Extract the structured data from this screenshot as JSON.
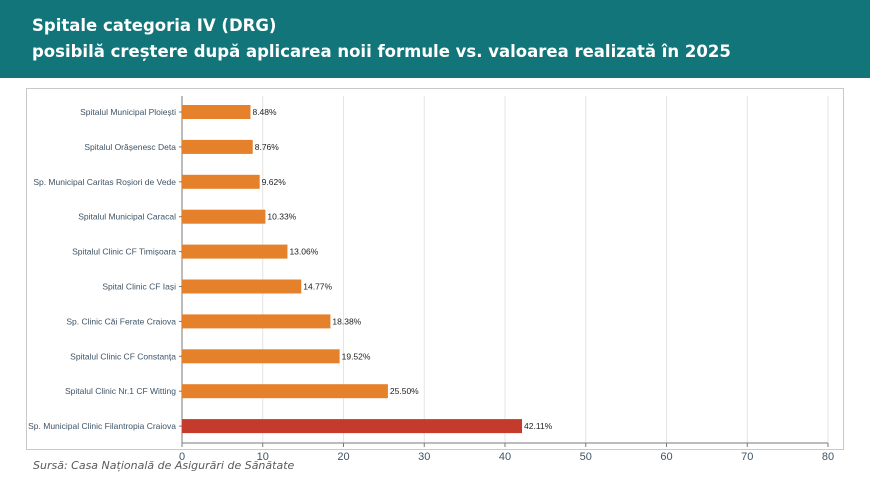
{
  "header": {
    "title_line1": "Spitale categoria IV (DRG)",
    "title_line2": "posibilă creștere după aplicarea noii formule vs. valoarea realizată în 2025"
  },
  "source": "Sursă: Casa Națională de Asigurări de Sănătate",
  "colors": {
    "header_bg": "#12757a",
    "bar": "#e5802b",
    "bar_highlight": "#c43b2c"
  },
  "chart_data": {
    "type": "bar",
    "orientation": "horizontal",
    "title": "Spitale categoria IV (DRG) posibilă creștere după aplicarea noii formule vs. valoarea realizată în 2025",
    "categories": [
      "Spitalul Municipal Ploiești",
      "Spitalul Orășenesc Deta",
      "Sp. Municipal Caritas Roșiori de Vede",
      "Spitalul Municipal Caracal",
      "Spitalul Clinic CF Timișoara",
      "Spital Clinic CF Iași",
      "Sp. Clinic Căi Ferate Craiova",
      "Spitalul Clinic CF Constanța",
      "Spitalul Clinic Nr.1 CF Witting",
      "Sp. Municipal Clinic Filantropia Craiova"
    ],
    "values": [
      8.48,
      8.76,
      9.62,
      10.33,
      13.06,
      14.77,
      18.38,
      19.52,
      25.5,
      42.11
    ],
    "value_labels": [
      "8.48%",
      "8.76%",
      "9.62%",
      "10.33%",
      "13.06%",
      "14.77%",
      "18.38%",
      "19.52%",
      "25.50%",
      "42.11%"
    ],
    "highlight_index": 9,
    "xlim": [
      0,
      80
    ],
    "xticks": [
      0,
      10,
      20,
      30,
      40,
      50,
      60,
      70,
      80
    ],
    "xtick_labels": [
      "0",
      "10",
      "20",
      "30",
      "40",
      "50",
      "60",
      "70",
      "80"
    ],
    "grid": true,
    "legend": "none",
    "xlabel": "",
    "ylabel": ""
  }
}
